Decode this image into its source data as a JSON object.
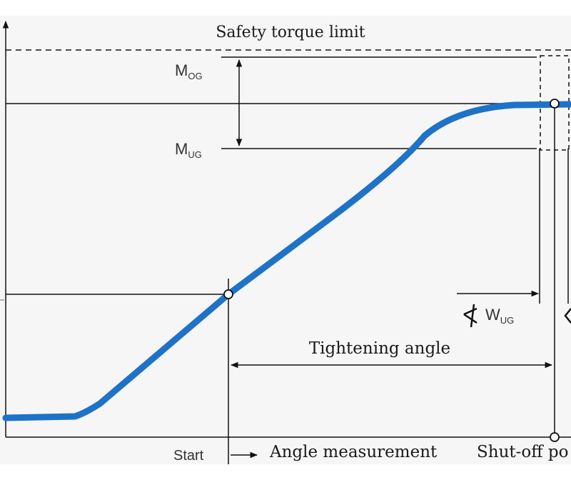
{
  "labels": {
    "safety_limit": "Safety torque limit",
    "m_og_main": "M",
    "m_og_sub": "OG",
    "m_ug_main": "M",
    "m_ug_sub": "UG",
    "w_ug_main": "W",
    "w_ug_sub": "UG",
    "tightening_angle": "Tightening angle",
    "start": "Start",
    "angle_measurement": "Angle measurement",
    "shutoff_point": "Shut-off po"
  },
  "colors": {
    "curve": "#1e72c8",
    "lines": "#111111",
    "text": "#1a1a1a"
  }
}
